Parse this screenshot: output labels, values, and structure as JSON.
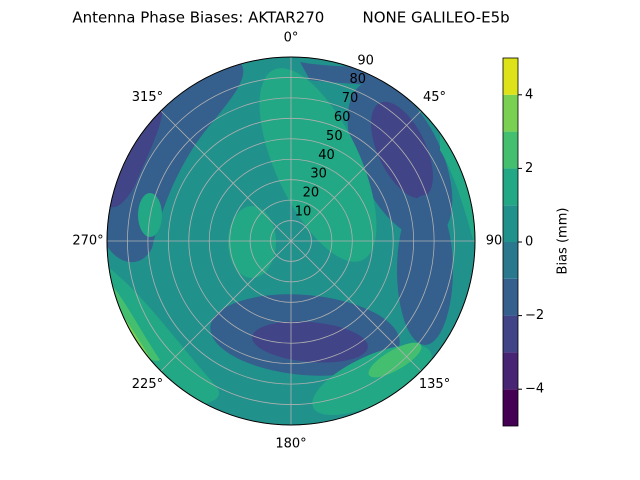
{
  "chart_data": {
    "type": "polar-contour",
    "title": "Antenna Phase Biases: AKTAR270        NONE GALILEO-E5b",
    "theta_ticks": [
      {
        "value": 0,
        "label": "0°"
      },
      {
        "value": 45,
        "label": "45°"
      },
      {
        "value": 90,
        "label": "90"
      },
      {
        "value": 135,
        "label": "135°"
      },
      {
        "value": 180,
        "label": "180°"
      },
      {
        "value": 225,
        "label": "225°"
      },
      {
        "value": 270,
        "label": "270°"
      },
      {
        "value": 315,
        "label": "315°"
      }
    ],
    "rlim": [
      0,
      90
    ],
    "rticks": [
      10,
      20,
      30,
      40,
      50,
      60,
      70,
      80,
      90
    ],
    "grid": true,
    "colorbar": {
      "label": "Bias (mm)",
      "levels": [
        -5,
        -4,
        -3,
        -2,
        -1,
        0,
        1,
        2,
        3,
        4,
        5
      ],
      "colors": [
        "#440154",
        "#482475",
        "#414487",
        "#355f8d",
        "#2a788e",
        "#21918c",
        "#22a884",
        "#44bf70",
        "#7ad151",
        "#dde318"
      ],
      "ticks": [
        {
          "value": -4,
          "label": "−4"
        },
        {
          "value": -2,
          "label": "−2"
        },
        0,
        2,
        4
      ]
    }
  }
}
